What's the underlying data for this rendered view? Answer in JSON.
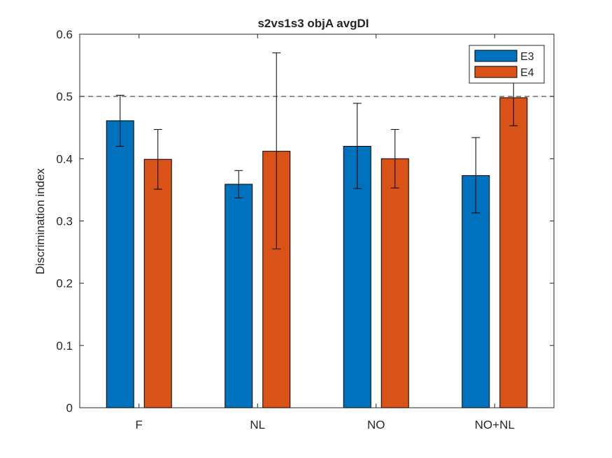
{
  "chart_data": {
    "type": "bar",
    "title": "s2vs1s3 objA avgDI",
    "xlabel": "",
    "ylabel": "Discrimination index",
    "ylim": [
      0,
      0.6
    ],
    "yticks": [
      0,
      0.1,
      0.2,
      0.3,
      0.4,
      0.5,
      0.6
    ],
    "ytick_labels": [
      "0",
      "0.1",
      "0.2",
      "0.3",
      "0.4",
      "0.5",
      "0.6"
    ],
    "categories": [
      "F",
      "NL",
      "NO",
      "NO+NL"
    ],
    "reference_line": 0.5,
    "legend_position": "top-right",
    "grid": false,
    "series": [
      {
        "name": "E3",
        "color": "#0072BD",
        "values": [
          0.461,
          0.359,
          0.42,
          0.373
        ],
        "error_low": [
          0.42,
          0.337,
          0.352,
          0.313
        ],
        "error_high": [
          0.502,
          0.381,
          0.489,
          0.434
        ]
      },
      {
        "name": "E4",
        "color": "#D95319",
        "values": [
          0.399,
          0.412,
          0.4,
          0.498
        ],
        "error_low": [
          0.351,
          0.255,
          0.353,
          0.453
        ],
        "error_high": [
          0.447,
          0.57,
          0.447,
          0.543
        ]
      }
    ]
  }
}
